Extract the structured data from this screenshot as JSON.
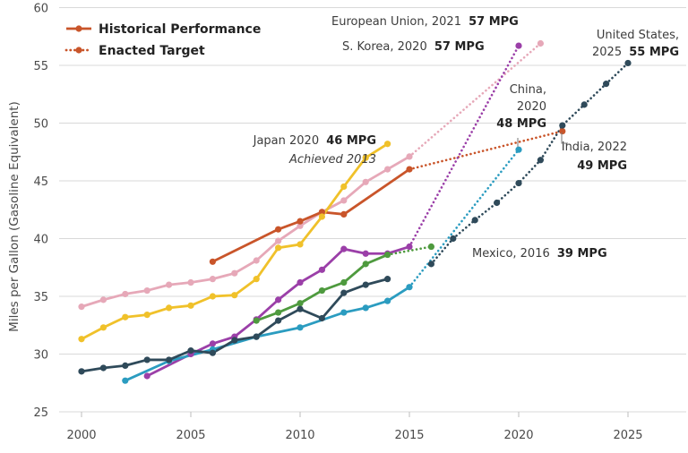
{
  "chart_data": {
    "type": "line",
    "ylabel": "Miles per Gallon (Gasoline Equivalent)",
    "xlim": [
      1999,
      2027
    ],
    "ylim": [
      25,
      60
    ],
    "xticks": [
      2000,
      2005,
      2010,
      2015,
      2020,
      2025
    ],
    "yticks": [
      25,
      30,
      35,
      40,
      45,
      50,
      55,
      60
    ],
    "grid": "horizontal",
    "legend": {
      "position": "top-left",
      "entries": [
        {
          "label": "Historical Performance",
          "style": "solid"
        },
        {
          "label": "Enacted Target",
          "style": "dotted"
        }
      ]
    },
    "series": [
      {
        "color": "#e6a8b8",
        "historical": [
          [
            2000,
            34.1
          ],
          [
            2001,
            34.7
          ],
          [
            2002,
            35.2
          ],
          [
            2003,
            35.5
          ],
          [
            2004,
            36.0
          ],
          [
            2005,
            36.2
          ],
          [
            2006,
            36.5
          ],
          [
            2007,
            37.0
          ],
          [
            2008,
            38.1
          ],
          [
            2009,
            39.8
          ],
          [
            2010,
            41.1
          ],
          [
            2011,
            42.3
          ],
          [
            2012,
            43.3
          ],
          [
            2013,
            44.9
          ],
          [
            2014,
            46.0
          ],
          [
            2015,
            47.1
          ]
        ],
        "target": [
          [
            2015,
            47.1
          ],
          [
            2021,
            56.9
          ]
        ]
      },
      {
        "color": "#c9552a",
        "historical": [
          [
            2006,
            38.0
          ],
          [
            2009,
            40.8
          ],
          [
            2010,
            41.5
          ],
          [
            2011,
            42.3
          ],
          [
            2012,
            42.1
          ],
          [
            2015,
            46.0
          ]
        ],
        "target": [
          [
            2015,
            46.0
          ],
          [
            2022,
            49.3
          ]
        ]
      },
      {
        "color": "#f0c12a",
        "historical": [
          [
            2000,
            31.3
          ],
          [
            2001,
            32.3
          ],
          [
            2002,
            33.2
          ],
          [
            2003,
            33.4
          ],
          [
            2004,
            34.0
          ],
          [
            2005,
            34.2
          ],
          [
            2006,
            35.0
          ],
          [
            2007,
            35.1
          ],
          [
            2008,
            36.5
          ],
          [
            2009,
            39.2
          ],
          [
            2010,
            39.5
          ],
          [
            2011,
            41.9
          ],
          [
            2012,
            44.5
          ],
          [
            2013,
            47.0
          ],
          [
            2014,
            48.2
          ]
        ],
        "target": []
      },
      {
        "color": "#9b3fa8",
        "historical": [
          [
            2003,
            28.1
          ],
          [
            2005,
            30.0
          ],
          [
            2006,
            30.9
          ],
          [
            2007,
            31.5
          ],
          [
            2008,
            33.0
          ],
          [
            2009,
            34.7
          ],
          [
            2010,
            36.2
          ],
          [
            2011,
            37.3
          ],
          [
            2012,
            39.1
          ],
          [
            2013,
            38.7
          ],
          [
            2014,
            38.7
          ],
          [
            2015,
            39.3
          ]
        ],
        "target": [
          [
            2015,
            39.3
          ],
          [
            2020,
            56.7
          ]
        ]
      },
      {
        "color": "#4e9a3e",
        "historical": [
          [
            2008,
            32.9
          ],
          [
            2009,
            33.6
          ],
          [
            2010,
            34.4
          ],
          [
            2011,
            35.5
          ],
          [
            2012,
            36.2
          ],
          [
            2013,
            37.8
          ],
          [
            2014,
            38.6
          ]
        ],
        "target": [
          [
            2014,
            38.6
          ],
          [
            2016,
            39.3
          ]
        ]
      },
      {
        "color": "#2b9cc0",
        "historical": [
          [
            2002,
            27.7
          ],
          [
            2004,
            29.4
          ],
          [
            2006,
            30.4
          ],
          [
            2008,
            31.5
          ],
          [
            2010,
            32.3
          ],
          [
            2012,
            33.6
          ],
          [
            2013,
            34.0
          ],
          [
            2014,
            34.6
          ],
          [
            2015,
            35.8
          ]
        ],
        "target": [
          [
            2015,
            35.8
          ],
          [
            2020,
            47.7
          ]
        ]
      },
      {
        "color": "#2f4a5a",
        "historical": [
          [
            2000,
            28.5
          ],
          [
            2001,
            28.8
          ],
          [
            2002,
            29.0
          ],
          [
            2003,
            29.5
          ],
          [
            2004,
            29.5
          ],
          [
            2005,
            30.3
          ],
          [
            2006,
            30.1
          ],
          [
            2007,
            31.2
          ],
          [
            2008,
            31.5
          ],
          [
            2009,
            32.9
          ],
          [
            2010,
            33.9
          ],
          [
            2011,
            33.1
          ],
          [
            2012,
            35.3
          ],
          [
            2013,
            36.0
          ],
          [
            2014,
            36.5
          ]
        ],
        "target": [
          [
            2016,
            37.8
          ],
          [
            2017,
            40.0
          ],
          [
            2018,
            41.6
          ],
          [
            2019,
            43.1
          ],
          [
            2020,
            44.8
          ],
          [
            2021,
            46.8
          ],
          [
            2022,
            49.8
          ],
          [
            2023,
            51.6
          ],
          [
            2024,
            53.4
          ],
          [
            2025,
            55.2
          ]
        ]
      }
    ],
    "annotations": [
      {
        "lines": [
          {
            "text": "European Union, 2021",
            "val": "57 MPG"
          }
        ]
      },
      {
        "lines": [
          {
            "text": "S. Korea, 2020",
            "val": "57 MPG"
          }
        ]
      },
      {
        "lines": [
          {
            "text": "United States,",
            "val": ""
          },
          {
            "text": "2025",
            "val": "55 MPG"
          }
        ]
      },
      {
        "lines": [
          {
            "text": "China,",
            "val": ""
          },
          {
            "text": "2020",
            "val": ""
          },
          {
            "text": "",
            "val": "48 MPG"
          }
        ]
      },
      {
        "lines": [
          {
            "text": "Japan 2020",
            "val": "46 MPG"
          },
          {
            "text": "Achieved 2013",
            "val": "",
            "italic": true
          }
        ]
      },
      {
        "lines": [
          {
            "text": "India, 2022",
            "val": ""
          },
          {
            "text": "",
            "val": "49 MPG"
          }
        ]
      },
      {
        "lines": [
          {
            "text": "Mexico, 2016",
            "val": "39 MPG"
          }
        ]
      }
    ]
  }
}
